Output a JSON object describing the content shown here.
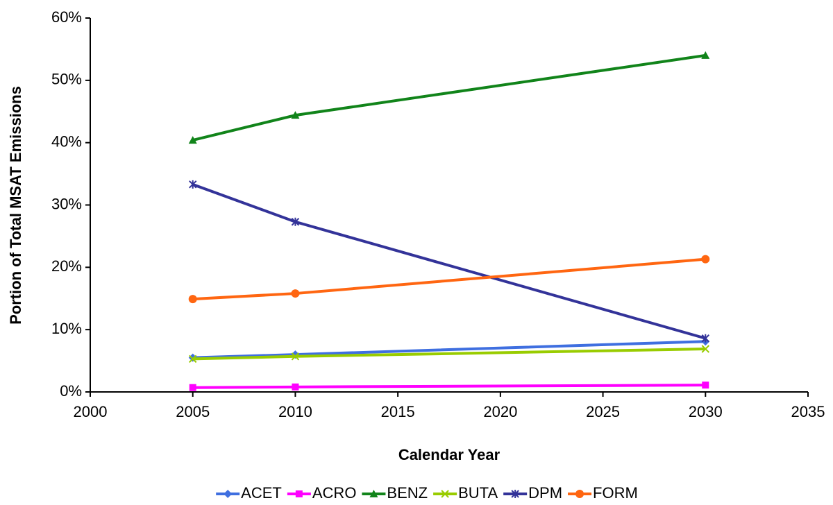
{
  "chart_data": {
    "type": "line",
    "xlabel": "Calendar Year",
    "ylabel": "Portion of Total MSAT Emissions",
    "x": [
      2005,
      2010,
      2030
    ],
    "series": [
      {
        "name": "ACET",
        "color": "#3f6fe0",
        "marker": "diamond",
        "values": [
          5.5,
          6.0,
          8.1
        ]
      },
      {
        "name": "ACRO",
        "color": "#ff00ff",
        "marker": "square",
        "values": [
          0.7,
          0.8,
          1.1
        ]
      },
      {
        "name": "BENZ",
        "color": "#11841a",
        "marker": "triangle",
        "values": [
          40.4,
          44.4,
          54.0
        ]
      },
      {
        "name": "BUTA",
        "color": "#99cc00",
        "marker": "x",
        "values": [
          5.3,
          5.7,
          6.9
        ]
      },
      {
        "name": "DPM",
        "color": "#333399",
        "marker": "asterisk",
        "values": [
          33.3,
          27.3,
          8.6
        ]
      },
      {
        "name": "FORM",
        "color": "#ff6611",
        "marker": "circle",
        "values": [
          14.9,
          15.8,
          21.3
        ]
      }
    ],
    "xlim": [
      2000,
      2035
    ],
    "xticks": [
      2000,
      2005,
      2010,
      2015,
      2020,
      2025,
      2030,
      2035
    ],
    "ylim": [
      0,
      60
    ],
    "yticks": [
      {
        "value": 0,
        "label": "0%"
      },
      {
        "value": 10,
        "label": "10%"
      },
      {
        "value": 20,
        "label": "20%"
      },
      {
        "value": 30,
        "label": "30%"
      },
      {
        "value": 40,
        "label": "40%"
      },
      {
        "value": 50,
        "label": "50%"
      },
      {
        "value": 60,
        "label": "60%"
      }
    ],
    "grid": false,
    "legend": "bottom"
  }
}
